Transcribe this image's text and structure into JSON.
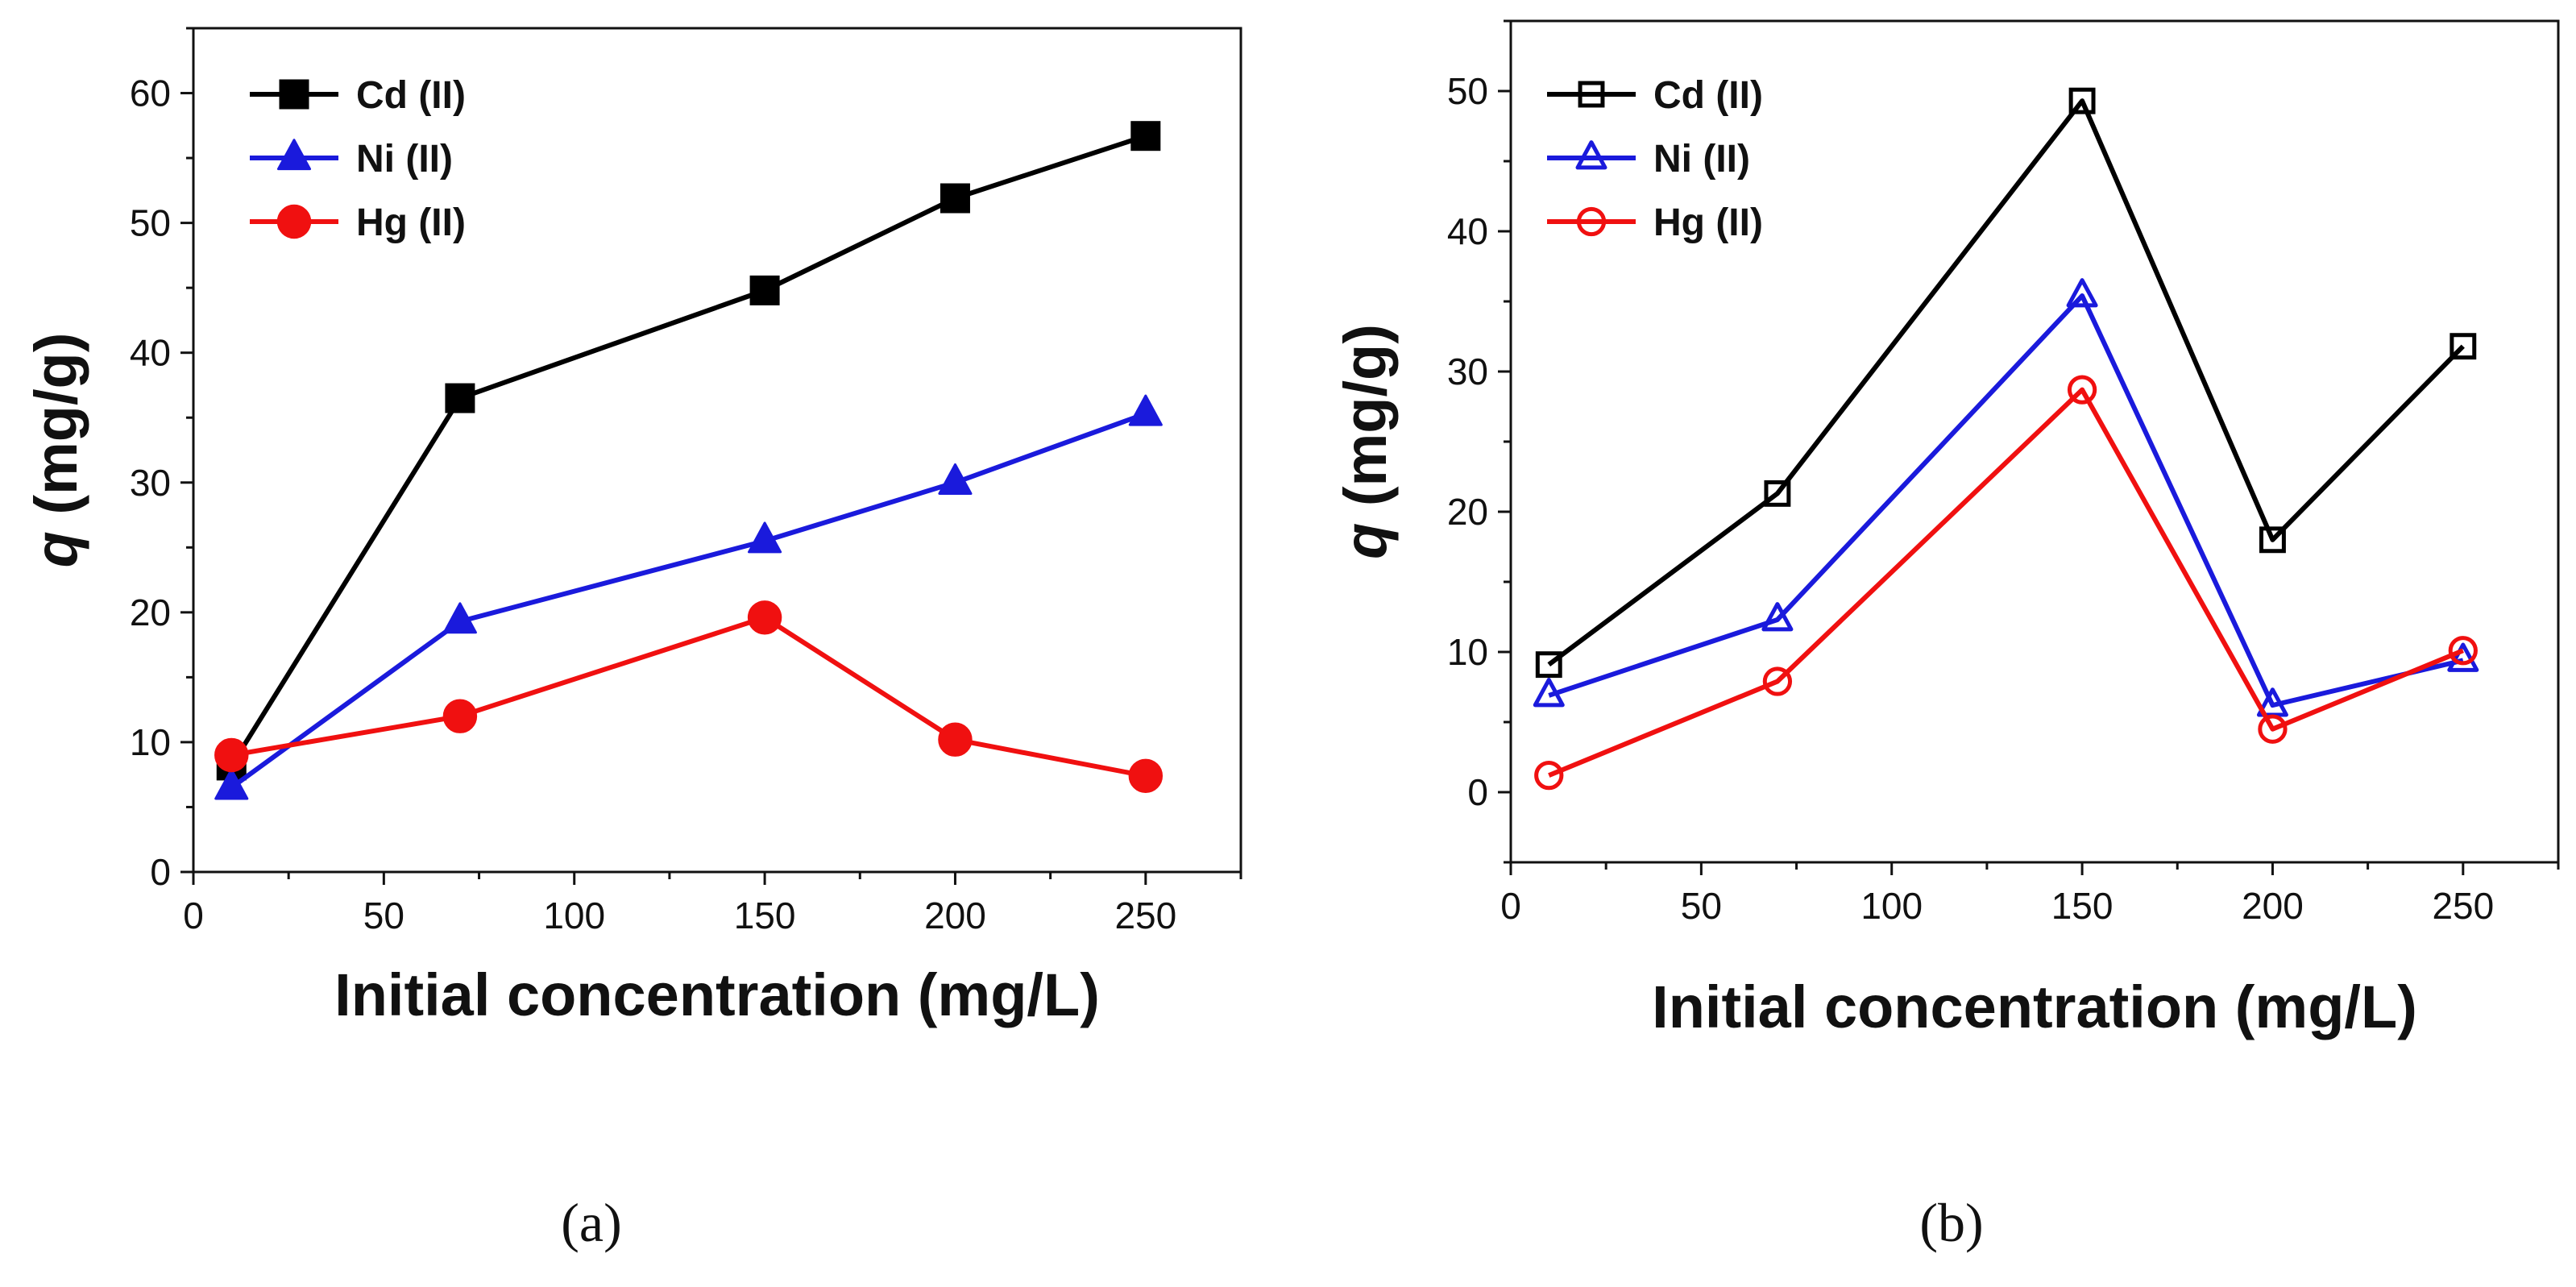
{
  "chart_data": [
    {
      "type": "line",
      "panel_label": "(a)",
      "xlabel": "Initial concentration (mg/L)",
      "ylabel_italic": "q",
      "ylabel_unit": " (mg/g)",
      "xlim": [
        0,
        275
      ],
      "ylim": [
        0,
        65
      ],
      "xticks": [
        0,
        50,
        100,
        150,
        200,
        250
      ],
      "yticks": [
        0,
        10,
        20,
        30,
        40,
        50,
        60
      ],
      "x": [
        10,
        70,
        150,
        200,
        250
      ],
      "marker_fill": "filled",
      "legend_position": "top-left",
      "series": [
        {
          "name": "Cd (II)",
          "color": "#000000",
          "marker": "square",
          "values": [
            8.2,
            36.5,
            44.8,
            51.9,
            56.7
          ]
        },
        {
          "name": "Ni (II)",
          "color": "#1a1adc",
          "marker": "triangle",
          "values": [
            6.5,
            19.3,
            25.5,
            30.0,
            35.3
          ]
        },
        {
          "name": "Hg (II)",
          "color": "#f01010",
          "marker": "circle",
          "values": [
            9.0,
            12.0,
            19.6,
            10.2,
            7.4
          ]
        }
      ]
    },
    {
      "type": "line",
      "panel_label": "(b)",
      "xlabel": "Initial concentration (mg/L)",
      "ylabel_italic": "q",
      "ylabel_unit": " (mg/g)",
      "xlim": [
        0,
        275
      ],
      "ylim": [
        -5,
        55
      ],
      "xticks": [
        0,
        50,
        100,
        150,
        200,
        250
      ],
      "yticks": [
        0,
        10,
        20,
        30,
        40,
        50
      ],
      "x": [
        10,
        70,
        150,
        200,
        250
      ],
      "marker_fill": "open",
      "legend_position": "top-left",
      "series": [
        {
          "name": "Cd (II)",
          "color": "#000000",
          "marker": "square",
          "values": [
            9.1,
            21.3,
            49.3,
            18.0,
            31.8
          ]
        },
        {
          "name": "Ni (II)",
          "color": "#1a1adc",
          "marker": "triangle",
          "values": [
            6.9,
            12.3,
            35.4,
            6.2,
            9.4
          ]
        },
        {
          "name": "Hg (II)",
          "color": "#f01010",
          "marker": "circle",
          "values": [
            1.2,
            7.9,
            28.7,
            4.5,
            10.1
          ]
        }
      ]
    }
  ]
}
